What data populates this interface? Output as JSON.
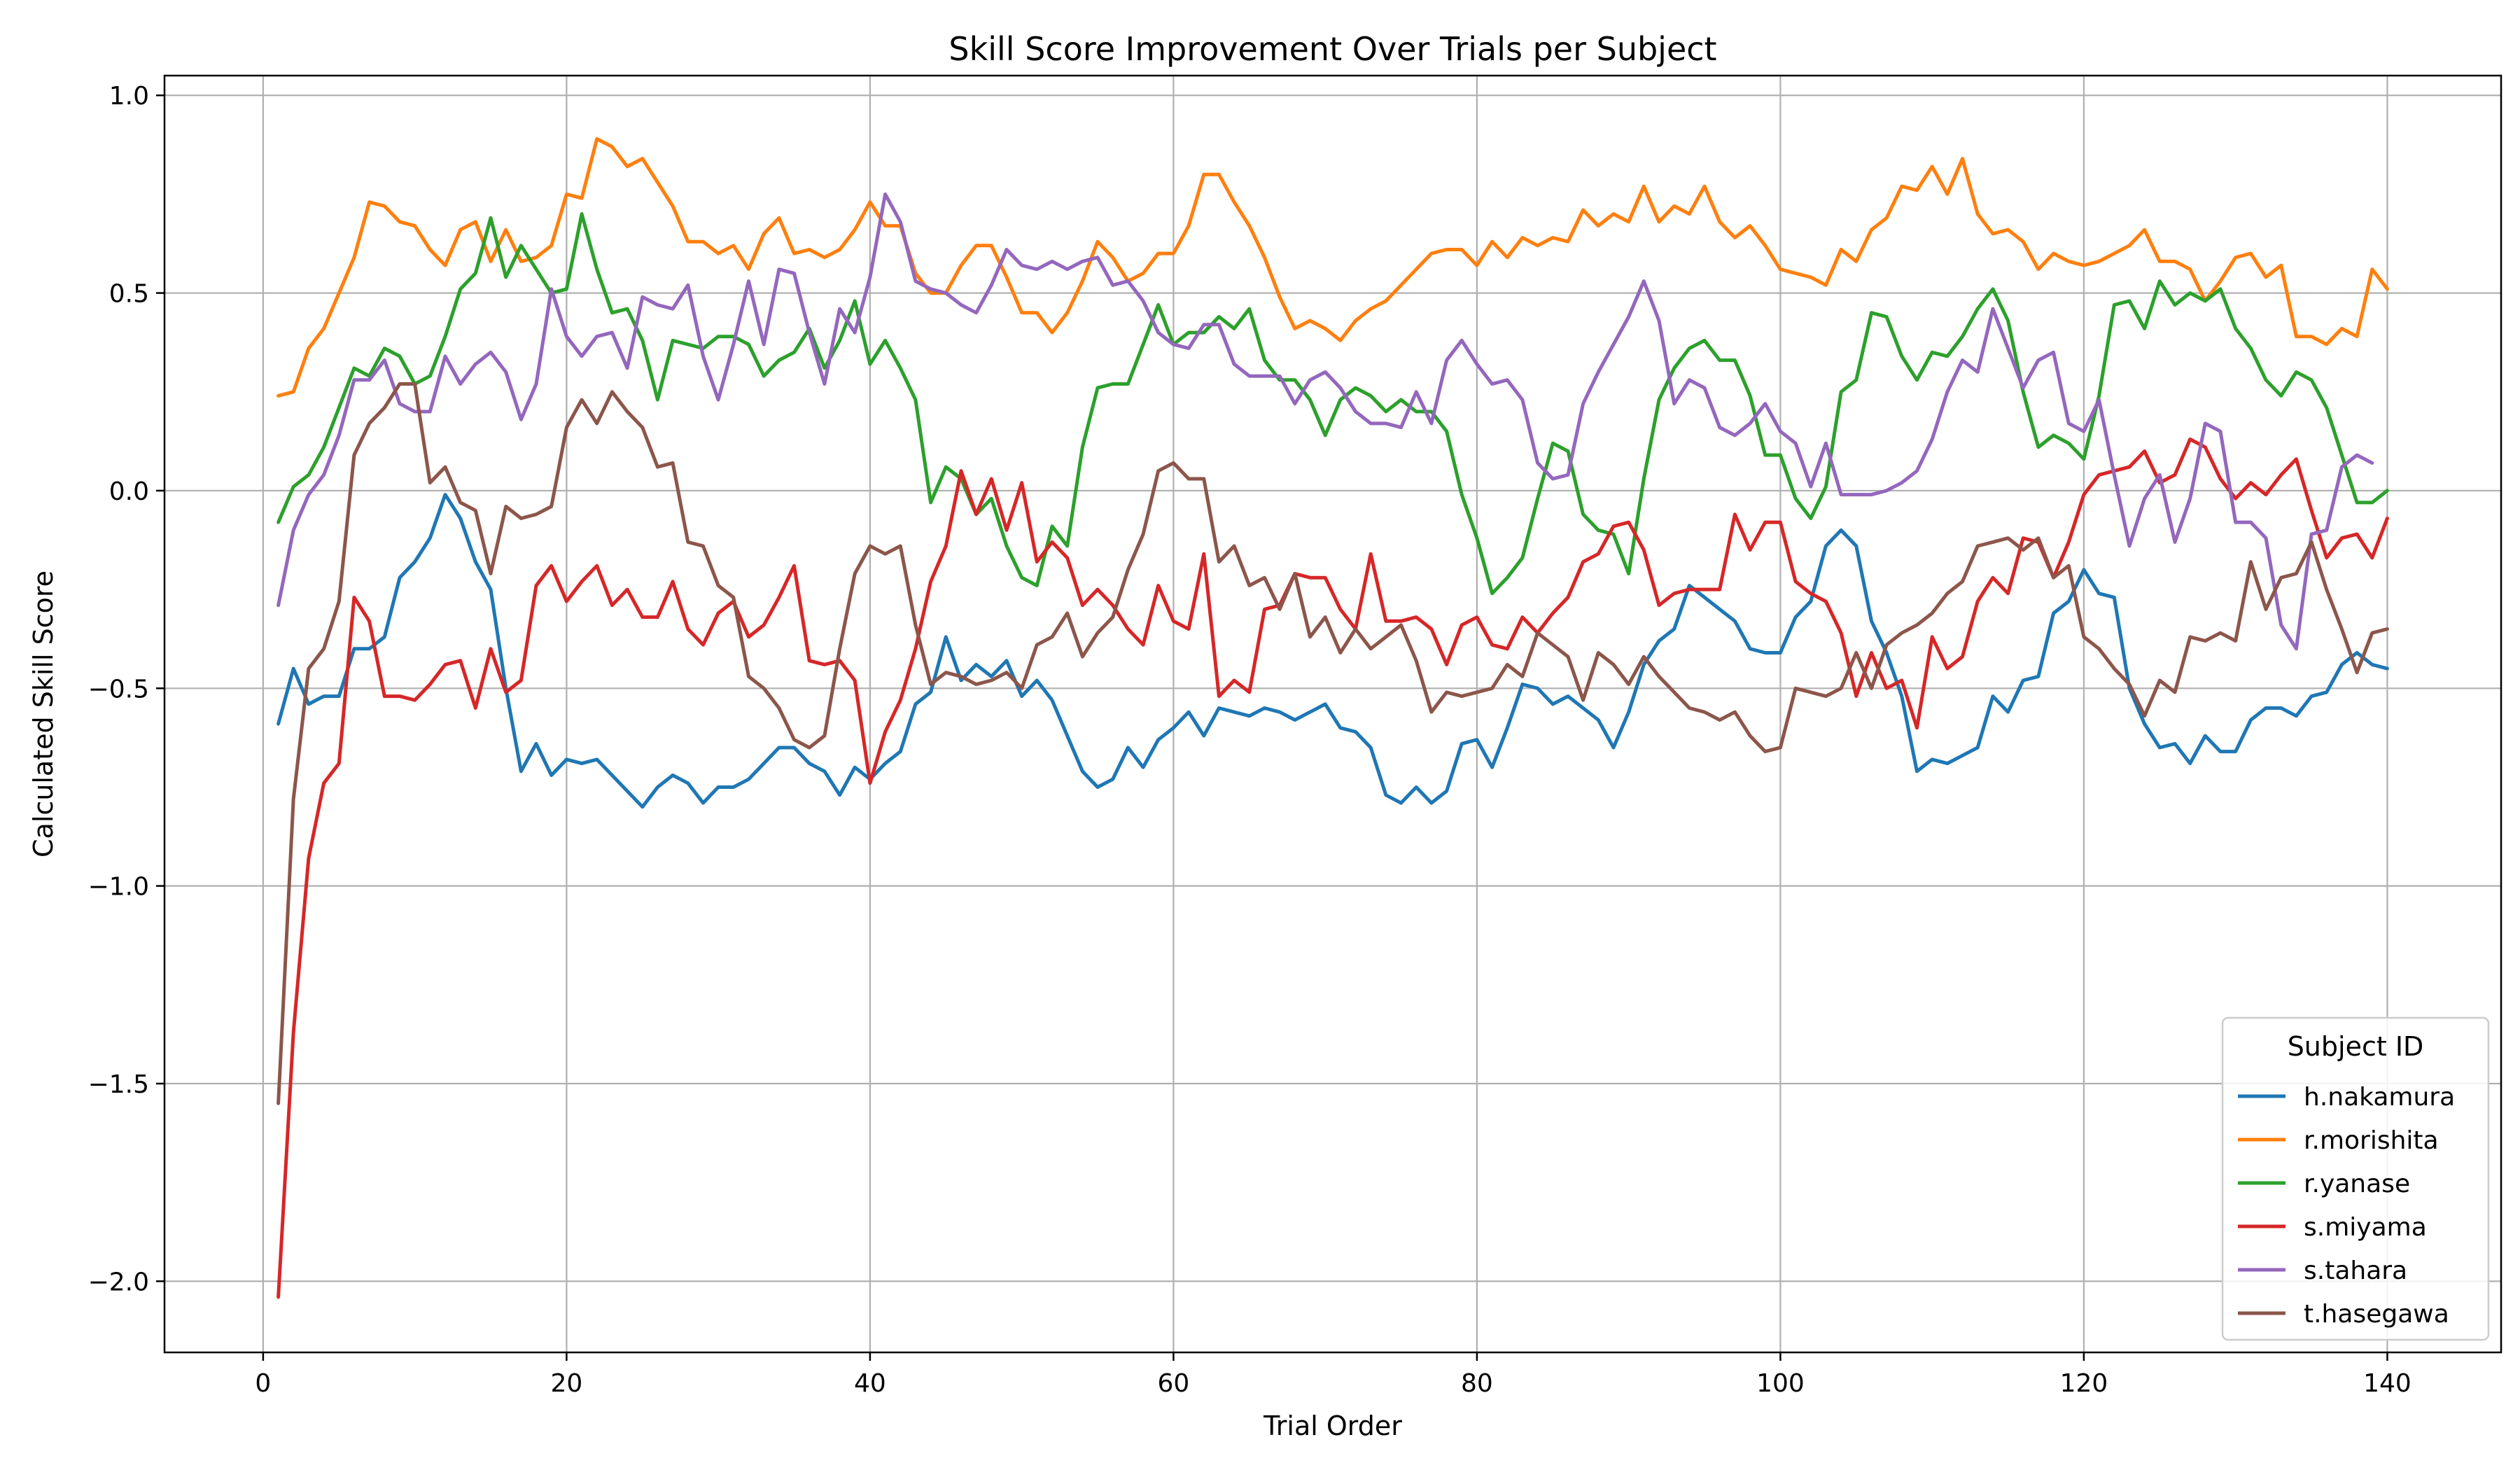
{
  "chart_data": {
    "type": "line",
    "title": "Skill Score Improvement Over Trials per Subject",
    "xlabel": "Trial Order",
    "ylabel": "Calculated Skill Score",
    "xlim": [
      -6.5,
      147.5
    ],
    "ylim": [
      -2.18,
      1.05
    ],
    "xticks": [
      0,
      20,
      40,
      60,
      80,
      100,
      120,
      140
    ],
    "yticks": [
      -2.0,
      -1.5,
      -1.0,
      -0.5,
      0.0,
      0.5,
      1.0
    ],
    "grid": true,
    "legend": {
      "title": "Subject ID",
      "position": "lower-right"
    },
    "x_start": 1,
    "series": [
      {
        "name": "h.nakamura",
        "color": "#1f77b4",
        "values": [
          -0.59,
          -0.45,
          -0.54,
          -0.52,
          -0.52,
          -0.4,
          -0.4,
          -0.37,
          -0.22,
          -0.18,
          -0.12,
          -0.01,
          -0.07,
          -0.18,
          -0.25,
          -0.5,
          -0.71,
          -0.64,
          -0.72,
          -0.68,
          -0.69,
          -0.68,
          -0.72,
          -0.76,
          -0.8,
          -0.75,
          -0.72,
          -0.74,
          -0.79,
          -0.75,
          -0.75,
          -0.73,
          -0.69,
          -0.65,
          -0.65,
          -0.69,
          -0.71,
          -0.77,
          -0.7,
          -0.73,
          -0.69,
          -0.66,
          -0.54,
          -0.51,
          -0.37,
          -0.48,
          -0.44,
          -0.47,
          -0.43,
          -0.52,
          -0.48,
          -0.53,
          -0.62,
          -0.71,
          -0.75,
          -0.73,
          -0.65,
          -0.7,
          -0.63,
          -0.6,
          -0.56,
          -0.62,
          -0.55,
          -0.56,
          -0.57,
          -0.55,
          -0.56,
          -0.58,
          -0.56,
          -0.54,
          -0.6,
          -0.61,
          -0.65,
          -0.77,
          -0.79,
          -0.75,
          -0.79,
          -0.76,
          -0.64,
          -0.63,
          -0.7,
          -0.6,
          -0.49,
          -0.5,
          -0.54,
          -0.52,
          -0.55,
          -0.58,
          -0.65,
          -0.56,
          -0.44,
          -0.38,
          -0.35,
          -0.24,
          -0.27,
          -0.3,
          -0.33,
          -0.4,
          -0.41,
          -0.41,
          -0.32,
          -0.28,
          -0.14,
          -0.1,
          -0.14,
          -0.33,
          -0.41,
          -0.52,
          -0.71,
          -0.68,
          -0.69,
          -0.67,
          -0.65,
          -0.52,
          -0.56,
          -0.48,
          -0.47,
          -0.31,
          -0.28,
          -0.2,
          -0.26,
          -0.27,
          -0.5,
          -0.59,
          -0.65,
          -0.64,
          -0.69,
          -0.62,
          -0.66,
          -0.66,
          -0.58,
          -0.55,
          -0.55,
          -0.57,
          -0.52,
          -0.51,
          -0.44,
          -0.41,
          -0.44,
          -0.45
        ]
      },
      {
        "name": "r.morishita",
        "color": "#ff7f0e",
        "values": [
          0.24,
          0.25,
          0.36,
          0.41,
          0.5,
          0.59,
          0.73,
          0.72,
          0.68,
          0.67,
          0.61,
          0.57,
          0.66,
          0.68,
          0.58,
          0.66,
          0.58,
          0.59,
          0.62,
          0.75,
          0.74,
          0.89,
          0.87,
          0.82,
          0.84,
          0.78,
          0.72,
          0.63,
          0.63,
          0.6,
          0.62,
          0.56,
          0.65,
          0.69,
          0.6,
          0.61,
          0.59,
          0.61,
          0.66,
          0.73,
          0.67,
          0.67,
          0.55,
          0.5,
          0.5,
          0.57,
          0.62,
          0.62,
          0.54,
          0.45,
          0.45,
          0.4,
          0.45,
          0.53,
          0.63,
          0.59,
          0.53,
          0.55,
          0.6,
          0.6,
          0.67,
          0.8,
          0.8,
          0.73,
          0.67,
          0.59,
          0.49,
          0.41,
          0.43,
          0.41,
          0.38,
          0.43,
          0.46,
          0.48,
          0.52,
          0.56,
          0.6,
          0.61,
          0.61,
          0.57,
          0.63,
          0.59,
          0.64,
          0.62,
          0.64,
          0.63,
          0.71,
          0.67,
          0.7,
          0.68,
          0.77,
          0.68,
          0.72,
          0.7,
          0.77,
          0.68,
          0.64,
          0.67,
          0.62,
          0.56,
          0.55,
          0.54,
          0.52,
          0.61,
          0.58,
          0.66,
          0.69,
          0.77,
          0.76,
          0.82,
          0.75,
          0.84,
          0.7,
          0.65,
          0.66,
          0.63,
          0.56,
          0.6,
          0.58,
          0.57,
          0.58,
          0.6,
          0.62,
          0.66,
          0.58,
          0.58,
          0.56,
          0.48,
          0.53,
          0.59,
          0.6,
          0.54,
          0.57,
          0.39,
          0.39,
          0.37,
          0.41,
          0.39,
          0.56,
          0.51
        ]
      },
      {
        "name": "r.yanase",
        "color": "#2ca02c",
        "values": [
          -0.08,
          0.01,
          0.04,
          0.11,
          0.21,
          0.31,
          0.29,
          0.36,
          0.34,
          0.27,
          0.29,
          0.39,
          0.51,
          0.55,
          0.69,
          0.54,
          0.62,
          0.56,
          0.5,
          0.51,
          0.7,
          0.56,
          0.45,
          0.46,
          0.38,
          0.23,
          0.38,
          0.37,
          0.36,
          0.39,
          0.39,
          0.37,
          0.29,
          0.33,
          0.35,
          0.41,
          0.31,
          0.38,
          0.48,
          0.32,
          0.38,
          0.31,
          0.23,
          -0.03,
          0.06,
          0.03,
          -0.06,
          -0.02,
          -0.14,
          -0.22,
          -0.24,
          -0.09,
          -0.14,
          0.11,
          0.26,
          0.27,
          0.27,
          0.37,
          0.47,
          0.37,
          0.4,
          0.4,
          0.44,
          0.41,
          0.46,
          0.33,
          0.28,
          0.28,
          0.23,
          0.14,
          0.23,
          0.26,
          0.24,
          0.2,
          0.23,
          0.2,
          0.2,
          0.15,
          -0.01,
          -0.12,
          -0.26,
          -0.22,
          -0.17,
          -0.02,
          0.12,
          0.1,
          -0.06,
          -0.1,
          -0.11,
          -0.21,
          0.03,
          0.23,
          0.31,
          0.36,
          0.38,
          0.33,
          0.33,
          0.24,
          0.09,
          0.09,
          -0.02,
          -0.07,
          0.01,
          0.25,
          0.28,
          0.45,
          0.44,
          0.34,
          0.28,
          0.35,
          0.34,
          0.39,
          0.46,
          0.51,
          0.43,
          0.25,
          0.11,
          0.14,
          0.12,
          0.08,
          0.24,
          0.47,
          0.48,
          0.41,
          0.53,
          0.47,
          0.5,
          0.48,
          0.51,
          0.41,
          0.36,
          0.28,
          0.24,
          0.3,
          0.28,
          0.21,
          0.09,
          -0.03,
          -0.03,
          0.0
        ]
      },
      {
        "name": "s.miyama",
        "color": "#d62728",
        "values": [
          -2.04,
          -1.37,
          -0.93,
          -0.74,
          -0.69,
          -0.27,
          -0.33,
          -0.52,
          -0.52,
          -0.53,
          -0.49,
          -0.44,
          -0.43,
          -0.55,
          -0.4,
          -0.51,
          -0.48,
          -0.24,
          -0.19,
          -0.28,
          -0.23,
          -0.19,
          -0.29,
          -0.25,
          -0.32,
          -0.32,
          -0.23,
          -0.35,
          -0.39,
          -0.31,
          -0.28,
          -0.37,
          -0.34,
          -0.27,
          -0.19,
          -0.43,
          -0.44,
          -0.43,
          -0.48,
          -0.74,
          -0.61,
          -0.53,
          -0.4,
          -0.23,
          -0.14,
          0.05,
          -0.06,
          0.03,
          -0.1,
          0.02,
          -0.18,
          -0.13,
          -0.17,
          -0.29,
          -0.25,
          -0.29,
          -0.35,
          -0.39,
          -0.24,
          -0.33,
          -0.35,
          -0.16,
          -0.52,
          -0.48,
          -0.51,
          -0.3,
          -0.29,
          -0.21,
          -0.22,
          -0.22,
          -0.3,
          -0.35,
          -0.16,
          -0.33,
          -0.33,
          -0.32,
          -0.35,
          -0.44,
          -0.34,
          -0.32,
          -0.39,
          -0.4,
          -0.32,
          -0.36,
          -0.31,
          -0.27,
          -0.18,
          -0.16,
          -0.09,
          -0.08,
          -0.15,
          -0.29,
          -0.26,
          -0.25,
          -0.25,
          -0.25,
          -0.06,
          -0.15,
          -0.08,
          -0.08,
          -0.23,
          -0.26,
          -0.28,
          -0.36,
          -0.52,
          -0.41,
          -0.5,
          -0.48,
          -0.6,
          -0.37,
          -0.45,
          -0.42,
          -0.28,
          -0.22,
          -0.26,
          -0.12,
          -0.13,
          -0.22,
          -0.13,
          -0.01,
          0.04,
          0.05,
          0.06,
          0.1,
          0.02,
          0.04,
          0.13,
          0.11,
          0.03,
          -0.02,
          0.02,
          -0.01,
          0.04,
          0.08,
          -0.05,
          -0.17,
          -0.12,
          -0.11,
          -0.17,
          -0.07
        ]
      },
      {
        "name": "s.tahara",
        "color": "#9467bd",
        "values": [
          -0.29,
          -0.1,
          -0.01,
          0.04,
          0.14,
          0.28,
          0.28,
          0.33,
          0.22,
          0.2,
          0.2,
          0.34,
          0.27,
          0.32,
          0.35,
          0.3,
          0.18,
          0.27,
          0.51,
          0.39,
          0.34,
          0.39,
          0.4,
          0.31,
          0.49,
          0.47,
          0.46,
          0.52,
          0.34,
          0.23,
          0.37,
          0.53,
          0.37,
          0.56,
          0.55,
          0.4,
          0.27,
          0.46,
          0.4,
          0.54,
          0.75,
          0.68,
          0.53,
          0.51,
          0.5,
          0.47,
          0.45,
          0.52,
          0.61,
          0.57,
          0.56,
          0.58,
          0.56,
          0.58,
          0.59,
          0.52,
          0.53,
          0.48,
          0.4,
          0.37,
          0.36,
          0.42,
          0.42,
          0.32,
          0.29,
          0.29,
          0.29,
          0.22,
          0.28,
          0.3,
          0.26,
          0.2,
          0.17,
          0.17,
          0.16,
          0.25,
          0.17,
          0.33,
          0.38,
          0.32,
          0.27,
          0.28,
          0.23,
          0.07,
          0.03,
          0.04,
          0.22,
          0.3,
          0.37,
          0.44,
          0.53,
          0.43,
          0.22,
          0.28,
          0.26,
          0.16,
          0.14,
          0.17,
          0.22,
          0.15,
          0.12,
          0.01,
          0.12,
          -0.01,
          -0.01,
          -0.01,
          0.0,
          0.02,
          0.05,
          0.13,
          0.25,
          0.33,
          0.3,
          0.46,
          0.36,
          0.26,
          0.33,
          0.35,
          0.17,
          0.15,
          0.23,
          0.04,
          -0.14,
          -0.02,
          0.04,
          -0.13,
          -0.02,
          0.17,
          0.15,
          -0.08,
          -0.08,
          -0.12,
          -0.34,
          -0.4,
          -0.11,
          -0.1,
          0.06,
          0.09,
          0.07
        ]
      },
      {
        "name": "t.hasegawa",
        "color": "#8c564b",
        "values": [
          -1.55,
          -0.78,
          -0.45,
          -0.4,
          -0.28,
          0.09,
          0.17,
          0.21,
          0.27,
          0.27,
          0.02,
          0.06,
          -0.03,
          -0.05,
          -0.21,
          -0.04,
          -0.07,
          -0.06,
          -0.04,
          0.16,
          0.23,
          0.17,
          0.25,
          0.2,
          0.16,
          0.06,
          0.07,
          -0.13,
          -0.14,
          -0.24,
          -0.27,
          -0.47,
          -0.5,
          -0.55,
          -0.63,
          -0.65,
          -0.62,
          -0.4,
          -0.21,
          -0.14,
          -0.16,
          -0.14,
          -0.34,
          -0.49,
          -0.46,
          -0.47,
          -0.49,
          -0.48,
          -0.46,
          -0.5,
          -0.39,
          -0.37,
          -0.31,
          -0.42,
          -0.36,
          -0.32,
          -0.2,
          -0.11,
          0.05,
          0.07,
          0.03,
          0.03,
          -0.18,
          -0.14,
          -0.24,
          -0.22,
          -0.3,
          -0.21,
          -0.37,
          -0.32,
          -0.41,
          -0.35,
          -0.4,
          -0.37,
          -0.34,
          -0.43,
          -0.56,
          -0.51,
          -0.52,
          -0.51,
          -0.5,
          -0.44,
          -0.47,
          -0.36,
          -0.39,
          -0.42,
          -0.53,
          -0.41,
          -0.44,
          -0.49,
          -0.42,
          -0.47,
          -0.51,
          -0.55,
          -0.56,
          -0.58,
          -0.56,
          -0.62,
          -0.66,
          -0.65,
          -0.5,
          -0.51,
          -0.52,
          -0.5,
          -0.41,
          -0.5,
          -0.39,
          -0.36,
          -0.34,
          -0.31,
          -0.26,
          -0.23,
          -0.14,
          -0.13,
          -0.12,
          -0.15,
          -0.12,
          -0.22,
          -0.19,
          -0.37,
          -0.4,
          -0.45,
          -0.49,
          -0.57,
          -0.48,
          -0.51,
          -0.37,
          -0.38,
          -0.36,
          -0.38,
          -0.18,
          -0.3,
          -0.22,
          -0.21,
          -0.13,
          -0.25,
          -0.35,
          -0.46,
          -0.36,
          -0.35
        ]
      }
    ]
  }
}
